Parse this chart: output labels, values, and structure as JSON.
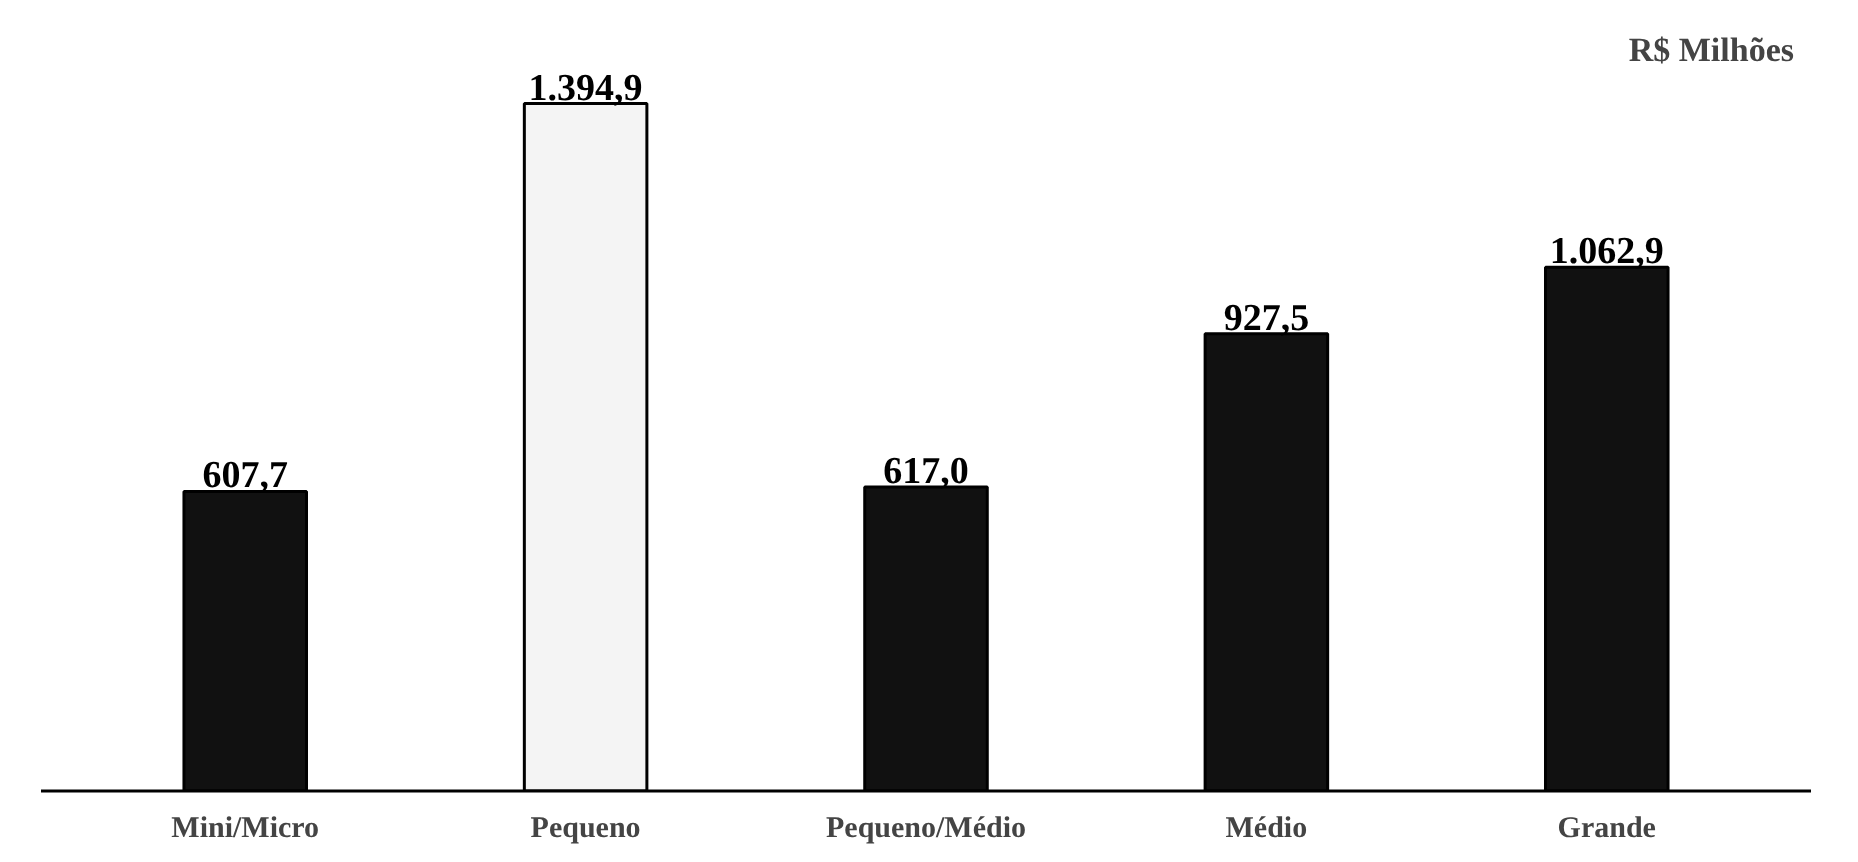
{
  "chart_data": {
    "type": "bar",
    "categories": [
      "Mini/Micro",
      "Pequeno",
      "Pequeno/Médio",
      "Médio",
      "Grande"
    ],
    "values": [
      607.7,
      1394.9,
      617.0,
      927.5,
      1062.9
    ],
    "value_labels": [
      "607,7",
      "1.394,9",
      "617,0",
      "927,5",
      "1.062,9"
    ],
    "colors": [
      "#111111",
      "#f4f4f4",
      "#111111",
      "#111111",
      "#111111"
    ],
    "annotations": [
      "R$ Milhões"
    ],
    "grid": false
  }
}
